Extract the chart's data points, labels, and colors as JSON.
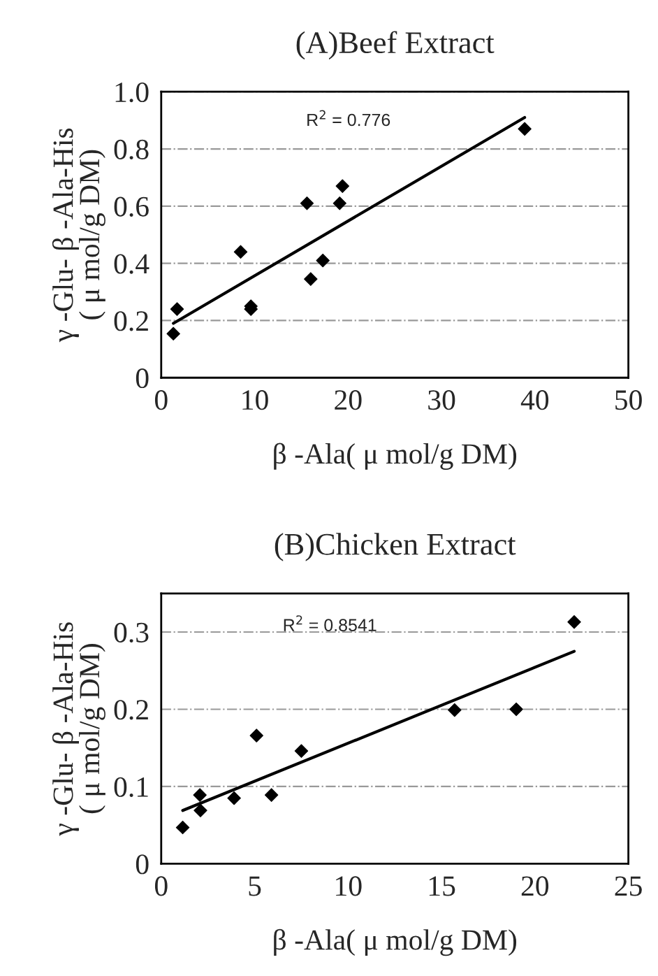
{
  "chart_data": [
    {
      "type": "scatter",
      "title": "(A)Beef Extract",
      "xlabel": "β -Ala( μ mol/g DM)",
      "ylabel": "γ -Glu- β -Ala-His\n( μ mol/g DM)",
      "grid": "y",
      "xlim": [
        0,
        50
      ],
      "ylim": [
        0,
        1.0
      ],
      "xticks": [
        0,
        10,
        20,
        30,
        40,
        50
      ],
      "yticks": [
        0,
        {
          "value": 0.2,
          "label": "0.2"
        },
        {
          "value": 0.4,
          "label": "0.4"
        },
        {
          "value": 0.6,
          "label": "0.6"
        },
        {
          "value": 0.8,
          "label": "0.8"
        },
        {
          "value": 1.0,
          "label": "1.0"
        }
      ],
      "annotations": [
        "R$^{2}$ = 0.776"
      ],
      "series": [
        {
          "marker": "diamond",
          "color": "#000000",
          "x": [
            1.3,
            1.7,
            8.5,
            9.6,
            9.6,
            15.6,
            16.0,
            17.3,
            19.1,
            19.4,
            38.9
          ],
          "values": [
            0.154,
            0.24,
            0.44,
            0.25,
            0.24,
            0.61,
            0.345,
            0.41,
            0.61,
            0.67,
            0.87
          ]
        },
        {
          "type": "line",
          "marker": "none",
          "color": "#000000",
          "x": [
            1.3,
            38.9
          ],
          "values": [
            0.19,
            0.91
          ]
        }
      ]
    },
    {
      "type": "scatter",
      "title": "(B)Chicken Extract",
      "xlabel": "β -Ala( μ mol/g DM)",
      "ylabel": "γ -Glu- β -Ala-His\n( μ mol/g DM)",
      "grid": "y",
      "xlim": [
        0,
        25
      ],
      "ylim": [
        0,
        0.35
      ],
      "xticks": [
        0,
        5,
        10,
        15,
        20,
        25
      ],
      "yticks": [
        0,
        {
          "value": 0.1,
          "label": "0.1"
        },
        {
          "value": 0.2,
          "label": "0.2"
        },
        {
          "value": 0.3,
          "label": "0.3"
        }
      ],
      "annotations": [
        "R$^{2}$ = 0.8541"
      ],
      "series": [
        {
          "marker": "diamond",
          "color": "#000000",
          "x": [
            1.15,
            2.07,
            2.1,
            3.9,
            5.1,
            5.9,
            7.5,
            15.7,
            19.0,
            22.1
          ],
          "values": [
            0.047,
            0.089,
            0.069,
            0.085,
            0.166,
            0.089,
            0.146,
            0.199,
            0.2,
            0.313
          ]
        },
        {
          "type": "line",
          "marker": "none",
          "color": "#000000",
          "x": [
            1.15,
            22.1
          ],
          "values": [
            0.069,
            0.275
          ]
        }
      ]
    }
  ]
}
